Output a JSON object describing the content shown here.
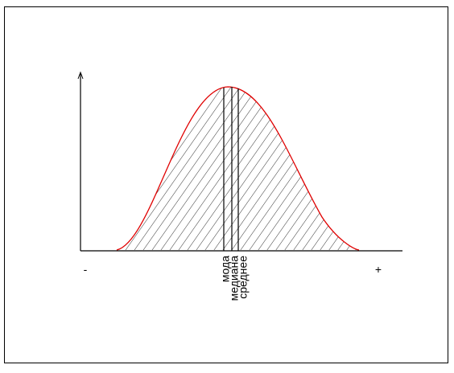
{
  "labels": {
    "mode": "мода",
    "median": "медиана",
    "mean": "среднее",
    "minus": "-",
    "plus": "+"
  }
}
